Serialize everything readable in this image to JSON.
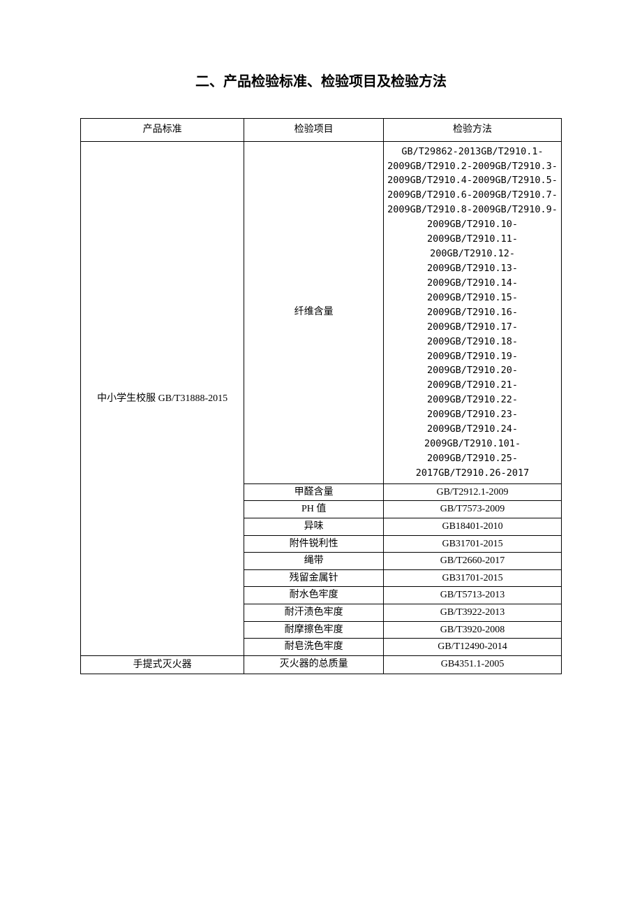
{
  "title": "二、产品检验标准、检验项目及检验方法",
  "headers": {
    "col1": "产品标准",
    "col2": "检验项目",
    "col3": "检验方法"
  },
  "standard1": "中小学生校服 GB/T31888-2015",
  "standard2": "手提式灭火器",
  "items": [
    {
      "name": "纤维含量",
      "method": "GB/T29862-2013GB/T2910.1-2009GB/T2910.2-2009GB/T2910.3-2009GB/T2910.4-2009GB/T2910.5-2009GB/T2910.6-2009GB/T2910.7-2009GB/T2910.8-2009GB/T2910.9-2009GB/T2910.10-2009GB/T2910.11-200GB/T2910.12-2009GB/T2910.13-2009GB/T2910.14-2009GB/T2910.15-2009GB/T2910.16-2009GB/T2910.17-2009GB/T2910.18-2009GB/T2910.19-2009GB/T2910.20-2009GB/T2910.21-2009GB/T2910.22-2009GB/T2910.23-2009GB/T2910.24-2009GB/T2910.101-2009GB/T2910.25-2017GB/T2910.26-2017"
    },
    {
      "name": "甲醛含量",
      "method": "GB/T2912.1-2009"
    },
    {
      "name": "PH 值",
      "method": "GB/T7573-2009"
    },
    {
      "name": "异味",
      "method": "GB18401-2010"
    },
    {
      "name": "附件锐利性",
      "method": "GB31701-2015"
    },
    {
      "name": "绳带",
      "method": "GB/T2660-2017"
    },
    {
      "name": "残留金属针",
      "method": "GB31701-2015"
    },
    {
      "name": "耐水色牢度",
      "method": "GB/T5713-2013"
    },
    {
      "name": "耐汗渍色牢度",
      "method": "GB/T3922-2013"
    },
    {
      "name": "耐摩擦色牢度",
      "method": "GB/T3920-2008"
    },
    {
      "name": "耐皂洗色牢度",
      "method": "GB/T12490-2014"
    }
  ],
  "item2": {
    "name": "灭火器的总质量",
    "method": "GB4351.1-2005"
  }
}
